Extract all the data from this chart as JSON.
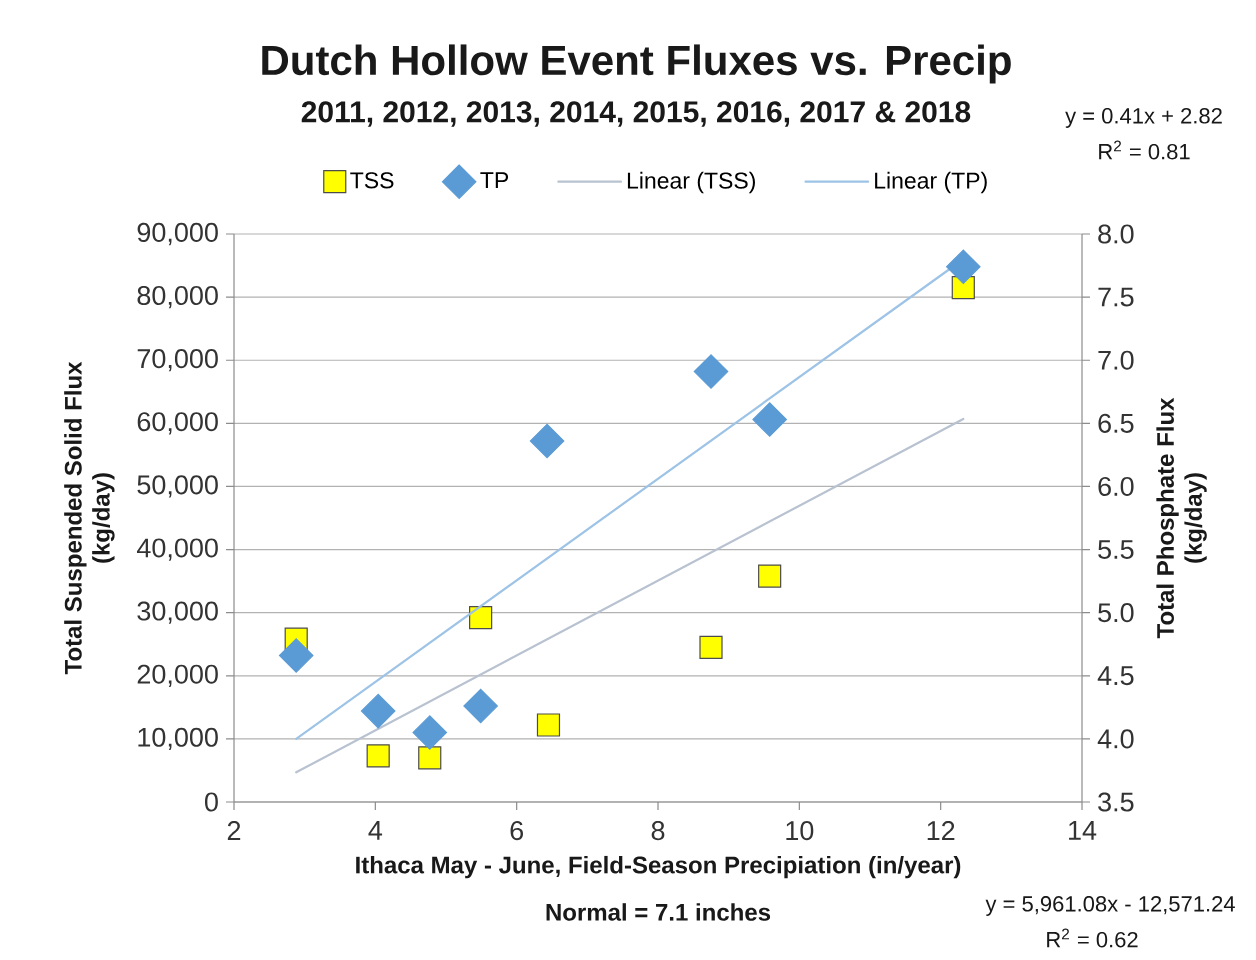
{
  "chart_data": {
    "type": "scatter",
    "title": "Dutch Hollow Event Fluxes vs. Precip",
    "subtitle": "2011, 2012, 2013, 2014, 2015, 2016, 2017 & 2018",
    "xlabel": "Ithaca May - June, Field-Season Precipiation (in/year)",
    "ylabel": "Total Suspended Solid Flux (kg/day)",
    "y2label": "Total Phosphate Flux (kg/day)",
    "annotations": [
      "Normal = 7.1 inches",
      "y = 0.41x + 2.82",
      "R$^{2}$ = 0.81",
      "y = 5,961.08x - 12,571.24",
      "R$^{2}$ = 0.62"
    ],
    "series": [
      {
        "name": "TSS",
        "type": "scatter",
        "marker": "square",
        "color": "#ffff00",
        "x": [
          2.88,
          4.04,
          4.77,
          5.49,
          6.45,
          8.75,
          9.58,
          12.32
        ],
        "values": [
          25800,
          7300,
          7000,
          29200,
          12200,
          24500,
          35800,
          81500
        ]
      },
      {
        "name": "TP",
        "type": "scatter",
        "marker": "diamond",
        "axis": "y2",
        "color": "#5b9bd5",
        "x": [
          2.88,
          4.04,
          4.77,
          5.49,
          6.43,
          8.75,
          9.58,
          12.32
        ],
        "values": [
          4.66,
          4.22,
          4.05,
          4.26,
          6.36,
          6.91,
          6.53,
          7.74
        ]
      },
      {
        "name": "Linear (TSS)",
        "type": "line",
        "color": "#b8c2d0",
        "x": [
          2.88,
          12.32
        ],
        "values": [
          4700,
          60700
        ]
      },
      {
        "name": "Linear (TP)",
        "type": "line",
        "axis": "y2",
        "color": "#9dc3e6",
        "x": [
          2.88,
          12.32
        ],
        "values": [
          4.0,
          7.8
        ]
      }
    ],
    "xlim": [
      2,
      14
    ],
    "xticks": [
      2,
      4,
      6,
      8,
      10,
      12,
      14
    ],
    "ylim": [
      0,
      90000
    ],
    "yticks": [
      0,
      {
        "value": 10000,
        "label": "10,000"
      },
      {
        "value": 20000,
        "label": "20,000"
      },
      {
        "value": 30000,
        "label": "30,000"
      },
      {
        "value": 40000,
        "label": "40,000"
      },
      {
        "value": 50000,
        "label": "50,000"
      },
      {
        "value": 60000,
        "label": "60,000"
      },
      {
        "value": 70000,
        "label": "70,000"
      },
      {
        "value": 80000,
        "label": "80,000"
      },
      {
        "value": 90000,
        "label": "90,000"
      }
    ],
    "y2lim": [
      3.5,
      8
    ],
    "y2ticks": [
      3.5,
      {
        "value": 4,
        "label": "4.0"
      },
      4.5,
      {
        "value": 5,
        "label": "5.0"
      },
      5.5,
      {
        "value": 6,
        "label": "6.0"
      },
      6.5,
      {
        "value": 7,
        "label": "7.0"
      },
      7.5,
      {
        "value": 8,
        "label": "8.0"
      }
    ],
    "grid": "y",
    "legend": "top"
  }
}
